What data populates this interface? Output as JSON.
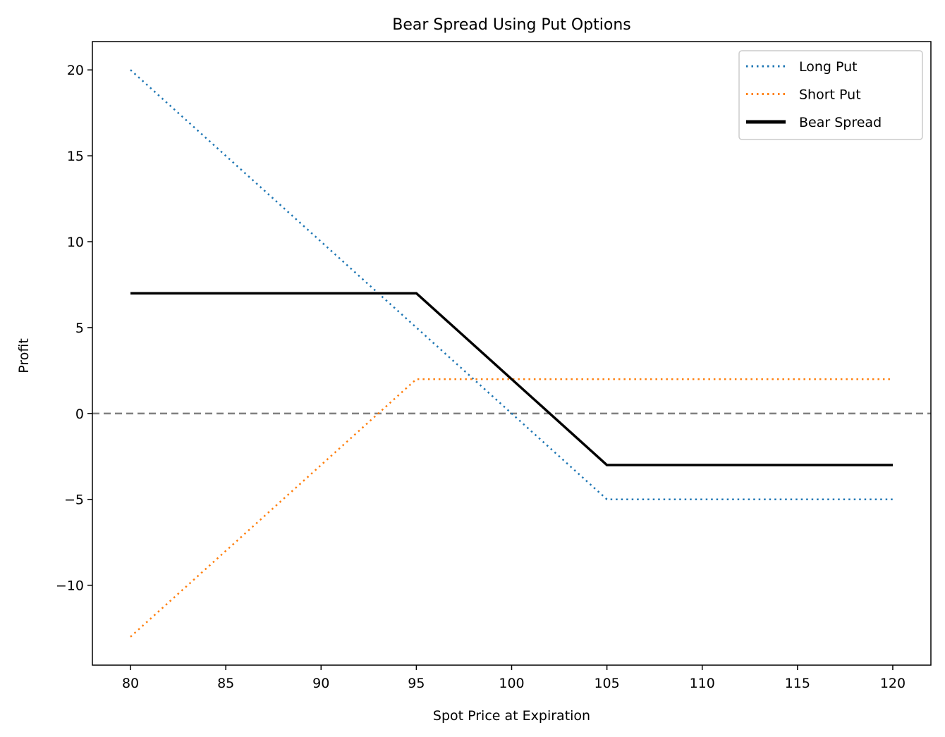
{
  "chart_data": {
    "type": "line",
    "title": "Bear Spread Using Put Options",
    "xlabel": "Spot Price at Expiration",
    "ylabel": "Profit",
    "xlim": [
      78,
      122
    ],
    "ylim": [
      -14.65,
      21.65
    ],
    "x_ticks": [
      80,
      85,
      90,
      95,
      100,
      105,
      110,
      115,
      120
    ],
    "y_ticks": [
      -10,
      -5,
      0,
      5,
      10,
      15,
      20
    ],
    "y_tick_labels": [
      "−10",
      "−5",
      "0",
      "5",
      "10",
      "15",
      "20"
    ],
    "grid": false,
    "legend_position": "top-right",
    "reference_line": {
      "y": 0,
      "style": "dashed",
      "color": "#808080"
    },
    "series": [
      {
        "name": "Long Put",
        "style": "dotted",
        "color": "#1f77b4",
        "width": 2.5,
        "x": [
          80,
          95,
          105,
          120
        ],
        "y": [
          20,
          5,
          -5,
          -5
        ]
      },
      {
        "name": "Short Put",
        "style": "dotted",
        "color": "#ff7f0e",
        "width": 2.5,
        "x": [
          80,
          95,
          105,
          120
        ],
        "y": [
          -13,
          2,
          2,
          2
        ]
      },
      {
        "name": "Bear Spread",
        "style": "solid",
        "color": "#000000",
        "width": 3.5,
        "x": [
          80,
          95,
          105,
          120
        ],
        "y": [
          7,
          7,
          -3,
          -3
        ]
      }
    ]
  }
}
